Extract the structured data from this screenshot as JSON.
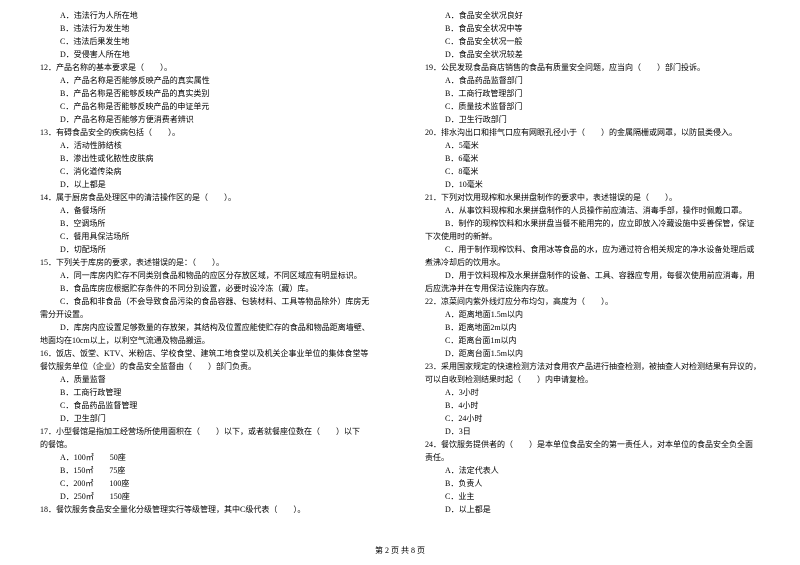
{
  "left": [
    {
      "cls": "indent1",
      "t": "A．违法行为人所在地"
    },
    {
      "cls": "indent1",
      "t": "B．违法行为发生地"
    },
    {
      "cls": "indent1",
      "t": "C．违法后果发生地"
    },
    {
      "cls": "indent1",
      "t": "D．受侵害人所在地"
    },
    {
      "cls": "indent0",
      "t": "12．产品名称的基本要求是（　　）。"
    },
    {
      "cls": "indent1",
      "t": "A．产品名称是否能够反映产品的真实属性"
    },
    {
      "cls": "indent1",
      "t": "B．产品名称是否能够反映产品的真实类别"
    },
    {
      "cls": "indent1",
      "t": "C．产品名称是否能够反映产品的申证单元"
    },
    {
      "cls": "indent1",
      "t": "D．产品名称是否能够方便消费者辨识"
    },
    {
      "cls": "indent0",
      "t": "13．有碍食品安全的疾病包括（　　）。"
    },
    {
      "cls": "indent1",
      "t": "A．活动性肺结核"
    },
    {
      "cls": "indent1",
      "t": "B．渗出性或化脓性皮肤病"
    },
    {
      "cls": "indent1",
      "t": "C．消化道传染病"
    },
    {
      "cls": "indent1",
      "t": "D．以上都是"
    },
    {
      "cls": "indent0",
      "t": "14．属于厨房食品处理区中的清洁操作区的是（　　）。"
    },
    {
      "cls": "indent1",
      "t": "A．备餐场所"
    },
    {
      "cls": "indent1",
      "t": "B．空调场所"
    },
    {
      "cls": "indent1",
      "t": "C．餐用具保洁场所"
    },
    {
      "cls": "indent1",
      "t": "D．切配场所"
    },
    {
      "cls": "indent0",
      "t": "15．下列关于库房的要求，表述错误的是：（　　）。"
    },
    {
      "cls": "indent1",
      "t": "A．同一库房内贮存不同类别食品和物品的应区分存放区域，不同区域应有明显标识。"
    },
    {
      "cls": "indent1",
      "t": "B．食品库房应根据贮存条件的不同分别设置，必要时设冷冻（藏）库。"
    },
    {
      "cls": "indent1",
      "t": "C．食品和非食品（不会导致食品污染的食品容器、包装材料、工具等物品除外）库房无"
    },
    {
      "cls": "indent0",
      "t": "需分开设置。"
    },
    {
      "cls": "indent1",
      "t": "D．库房内应设置足够数量的存放架，其结构及位置应能使贮存的食品和物品距离墙壁、"
    },
    {
      "cls": "indent0",
      "t": "地面均在10cm以上，以利空气流通及物品搬运。"
    },
    {
      "cls": "indent0",
      "t": "16．饭店、饭堂、KTV、米粉店、学校食堂、建筑工地食堂以及机关企事业单位的集体食堂等"
    },
    {
      "cls": "indent0",
      "t": "餐饮服务单位（企业）的食品安全监督由（　　）部门负责。"
    },
    {
      "cls": "indent1",
      "t": "A．质量监督"
    },
    {
      "cls": "indent1",
      "t": "B．工商行政管理"
    },
    {
      "cls": "indent1",
      "t": "C．食品药品监督管理"
    },
    {
      "cls": "indent1",
      "t": "D．卫生部门"
    },
    {
      "cls": "indent0",
      "t": "17．小型餐馆是指加工经营场所使用面积在（　　）以下，或者就餐座位数在（　　）以下"
    },
    {
      "cls": "indent0",
      "t": "的餐馆。"
    },
    {
      "cls": "indent1",
      "t": "A．100㎡　　50座"
    },
    {
      "cls": "indent1",
      "t": "B．150㎡　　75座"
    },
    {
      "cls": "indent1",
      "t": "C．200㎡　　100座"
    },
    {
      "cls": "indent1",
      "t": "D．250㎡　　150座"
    },
    {
      "cls": "indent0",
      "t": "18．餐饮服务食品安全量化分级管理实行等级管理，其中C级代表（　　）。"
    }
  ],
  "right": [
    {
      "cls": "indent1",
      "t": "A．食品安全状况良好"
    },
    {
      "cls": "indent1",
      "t": "B．食品安全状况中等"
    },
    {
      "cls": "indent1",
      "t": "C．食品安全状况一般"
    },
    {
      "cls": "indent1",
      "t": "D．食品安全状况较差"
    },
    {
      "cls": "indent0",
      "t": "19．公民发现食品商店销售的食品有质量安全问题，应当向（　　）部门投诉。"
    },
    {
      "cls": "indent1",
      "t": "A．食品药品监督部门"
    },
    {
      "cls": "indent1",
      "t": "B．工商行政管理部门"
    },
    {
      "cls": "indent1",
      "t": "C．质量技术监督部门"
    },
    {
      "cls": "indent1",
      "t": "D．卫生行政部门"
    },
    {
      "cls": "indent0",
      "t": "20．排水沟出口和排气口应有网眼孔径小于（　　）的金属隔栅或网罩，以防鼠类侵入。"
    },
    {
      "cls": "indent1",
      "t": "A．5毫米"
    },
    {
      "cls": "indent1",
      "t": "B．6毫米"
    },
    {
      "cls": "indent1",
      "t": "C．8毫米"
    },
    {
      "cls": "indent1",
      "t": "D．10毫米"
    },
    {
      "cls": "indent0",
      "t": "21．下列对饮用现榨和水果拼盘制作的要求中，表述错误的是（　　）。"
    },
    {
      "cls": "indent1",
      "t": "A．从事饮料现榨和水果拼盘制作的人员操作前应清洁、消毒手部，操作时佩戴口罩。"
    },
    {
      "cls": "indent1",
      "t": "B．制作的现榨饮料和水果拼盘当餐不能用完的，应立即放入冷藏设施中妥善保管，保证"
    },
    {
      "cls": "indent0",
      "t": "下次使用时的新鲜。"
    },
    {
      "cls": "indent1",
      "t": "C．用于制作现榨饮料、食用冰等食品的水，应为通过符合相关规定的净水设备处理后或"
    },
    {
      "cls": "indent0",
      "t": "煮沸冷却后的饮用水。"
    },
    {
      "cls": "indent1",
      "t": "D．用于饮料现榨及水果拼盘制作的设备、工具、容器应专用，每餐次使用前应消毒，用"
    },
    {
      "cls": "indent0",
      "t": "后应洗净并在专用保洁设施内存放。"
    },
    {
      "cls": "indent0",
      "t": "22．凉菜间内紫外线灯应分布均匀，高度为（　　）。"
    },
    {
      "cls": "indent1",
      "t": "A．距离地面1.5m以内"
    },
    {
      "cls": "indent1",
      "t": "B．距离地面2m以内"
    },
    {
      "cls": "indent1",
      "t": "C．距离台面1m以内"
    },
    {
      "cls": "indent1",
      "t": "D．距离台面1.5m以内"
    },
    {
      "cls": "indent0",
      "t": "23．采用国家规定的快速检测方法对食用农产品进行抽查检测，被抽查人对检测结果有异议的，"
    },
    {
      "cls": "indent0",
      "t": "可以自收到检测结果时起（　　）内申请复检。"
    },
    {
      "cls": "indent1",
      "t": "A．3小时"
    },
    {
      "cls": "indent1",
      "t": "B．4小时"
    },
    {
      "cls": "indent1",
      "t": "C．24小时"
    },
    {
      "cls": "indent1",
      "t": "D．3日"
    },
    {
      "cls": "indent0",
      "t": "24．餐饮服务提供者的（　　）是本单位食品安全的第一责任人，对本单位的食品安全负全面"
    },
    {
      "cls": "indent0",
      "t": "责任。"
    },
    {
      "cls": "indent1",
      "t": "A．法定代表人"
    },
    {
      "cls": "indent1",
      "t": "B．负责人"
    },
    {
      "cls": "indent1",
      "t": "C．业主"
    },
    {
      "cls": "indent1",
      "t": "D．以上都是"
    }
  ],
  "footer": "第 2 页 共 8 页"
}
